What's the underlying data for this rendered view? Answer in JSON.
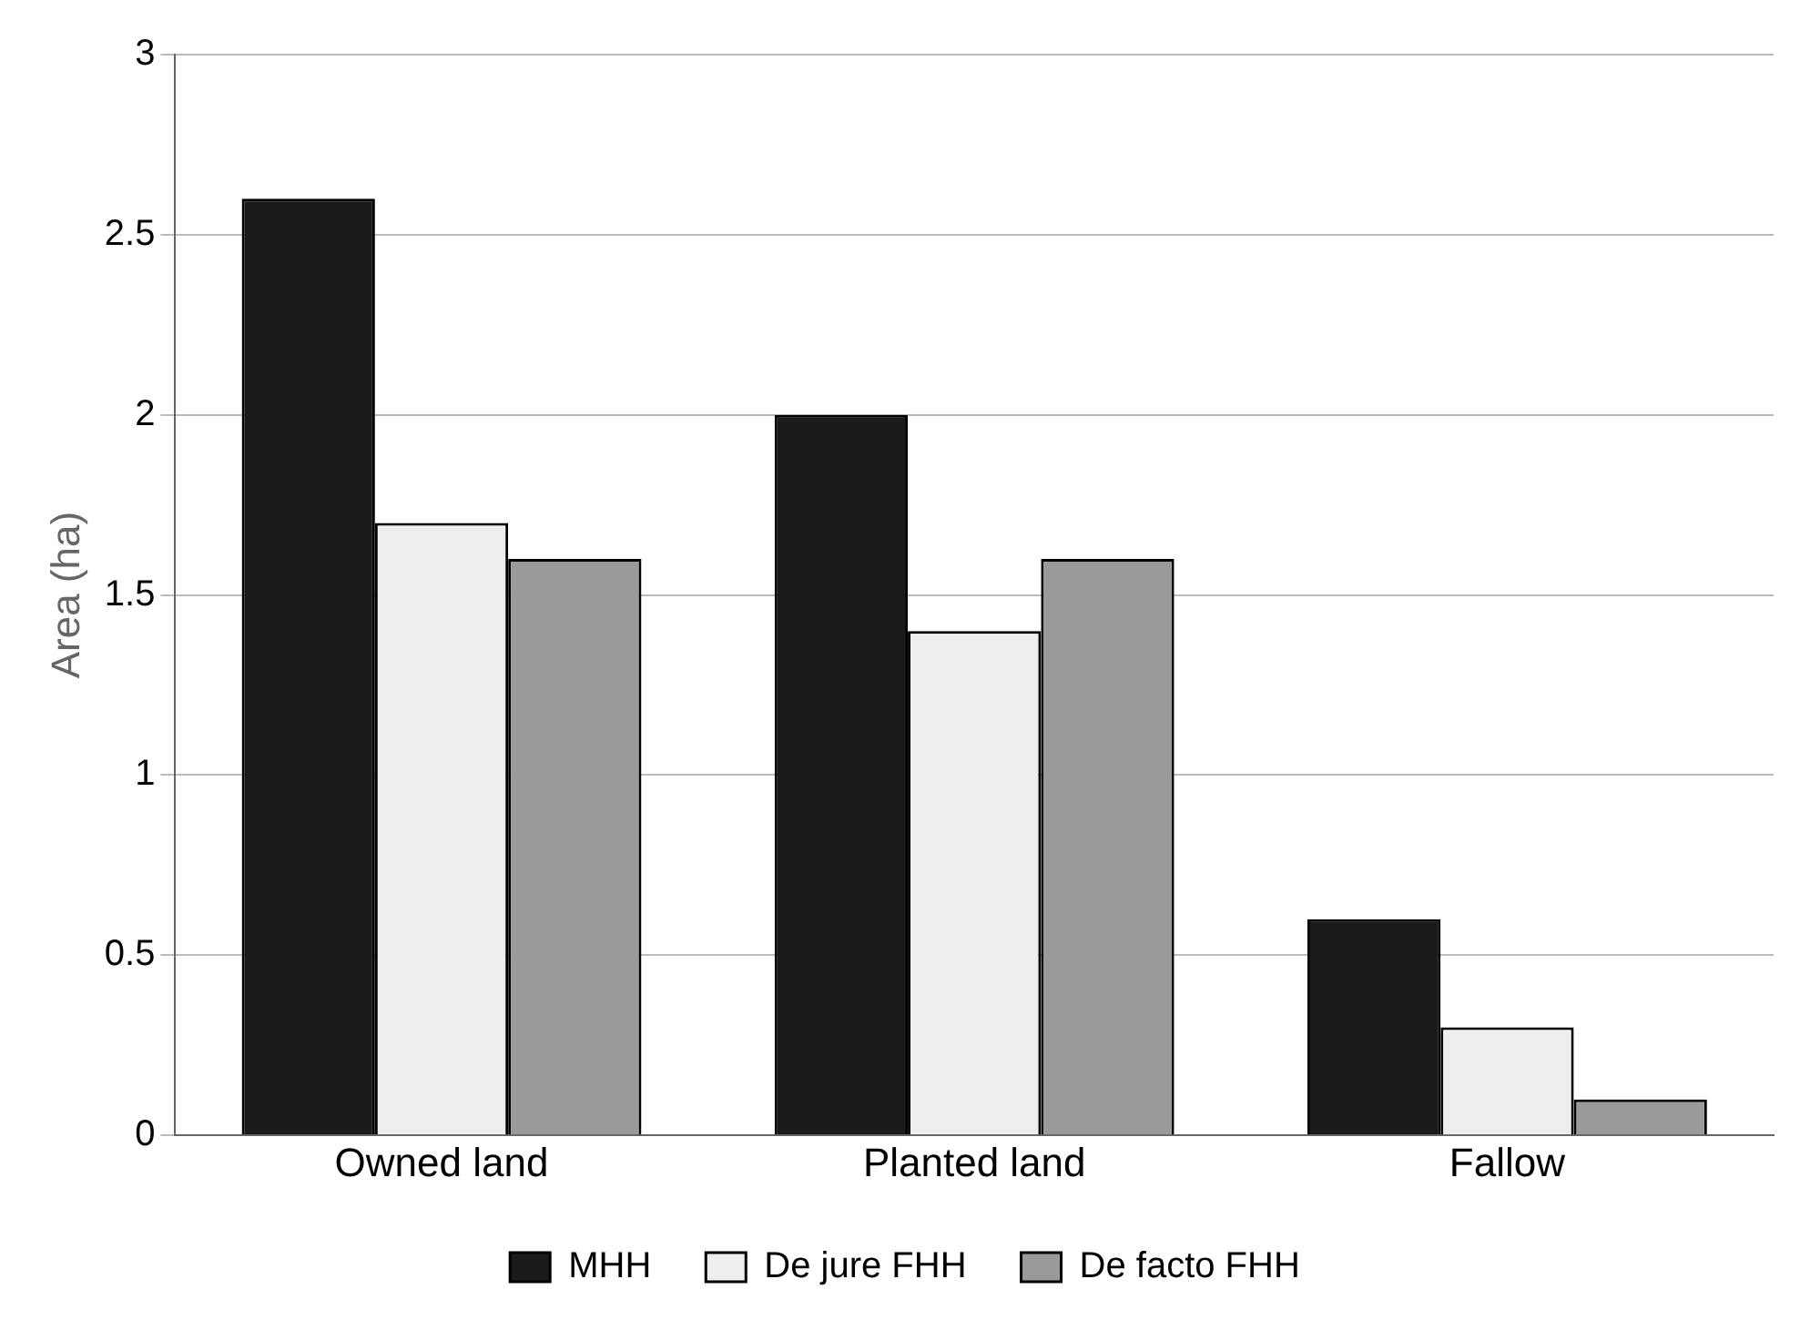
{
  "chart_data": {
    "type": "bar",
    "ylabel": "Area (ha)",
    "categories": [
      "Owned land",
      "Planted land",
      "Fallow"
    ],
    "series": [
      {
        "name": "MHH",
        "color": "#1a1a1a",
        "values": [
          2.6,
          2.0,
          0.6
        ]
      },
      {
        "name": "De jure FHH",
        "color": "#eeeeee",
        "values": [
          1.7,
          1.4,
          0.3
        ]
      },
      {
        "name": "De facto FHH",
        "color": "#9a9a9a",
        "values": [
          1.6,
          1.6,
          0.1
        ]
      }
    ],
    "ylim": [
      0,
      3
    ],
    "yticks": [
      0,
      0.5,
      1,
      1.5,
      2,
      2.5,
      3
    ],
    "grid": "y",
    "legend": "bottom"
  }
}
